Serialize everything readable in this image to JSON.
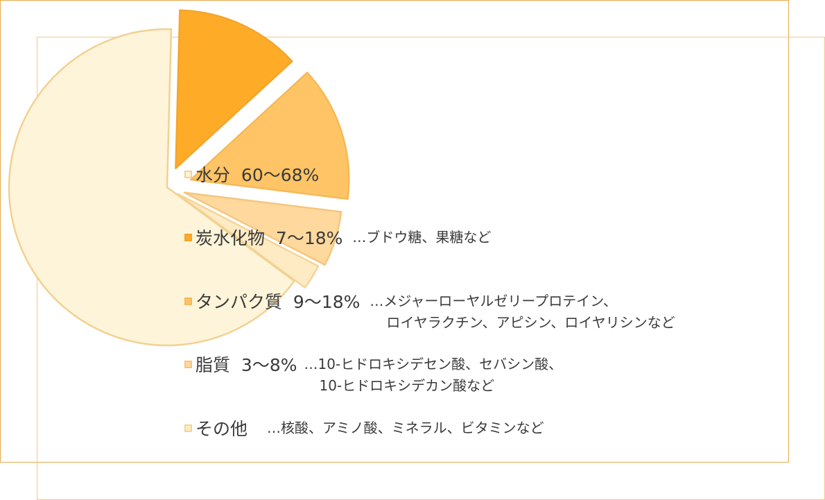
{
  "chart_data": {
    "type": "pie",
    "title": "",
    "exploded": true,
    "slices": [
      {
        "label": "水分",
        "range": "60〜68%",
        "value": 64,
        "color": "#fef4d9",
        "border": "#f2d191",
        "note": []
      },
      {
        "label": "炭水化物",
        "range": "7〜18%",
        "value": 12.5,
        "color": "#feab28",
        "border": "#f3a52c",
        "note": [
          "…ブドウ糖、果糖など"
        ]
      },
      {
        "label": "タンパク質",
        "range": "9〜18%",
        "value": 13.5,
        "color": "#fec466",
        "border": "#f5b955",
        "note": [
          "…メジャーローヤルゼリープロテイン、",
          "ロイヤラクチン、アピシン、ロイヤリシンなど"
        ]
      },
      {
        "label": "脂質",
        "range": "3〜8%",
        "value": 5.5,
        "color": "#fed89c",
        "border": "#f4c77e",
        "note": [
          "…10-ヒドロキシデセン酸、セバシン酸、",
          "10-ヒドロキシデカン酸など"
        ]
      },
      {
        "label": "その他",
        "range": "",
        "value": 2.5,
        "color": "#feebc4",
        "border": "#f4d598",
        "note": [
          "…核酸、アミノ酸、ミネラル、ビタミンなど"
        ]
      }
    ]
  }
}
